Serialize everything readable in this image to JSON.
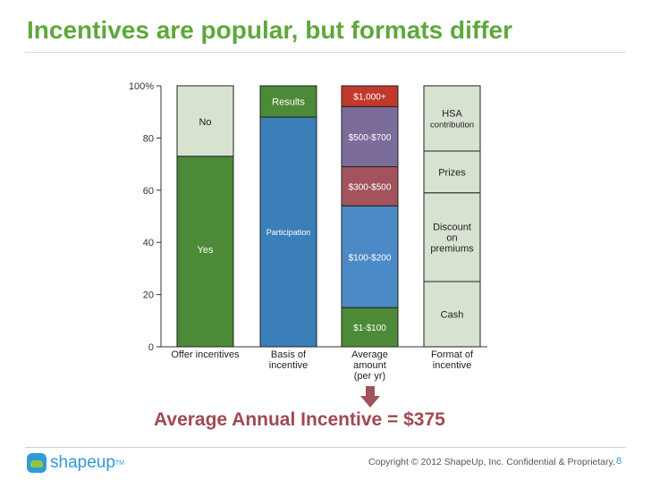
{
  "title": "Incentives are popular, but formats differ",
  "subline": "Average Annual Incentive = $375",
  "footer": {
    "logo_text": "shapeup",
    "logo_tm": "TM",
    "copyright": "Copyright © 2012 ShapeUp, Inc. Confidential & Proprietary.",
    "page_number": "8"
  },
  "colors": {
    "title": "#5ea83b",
    "green": "#4c8a37",
    "light": "#d7e2d1",
    "blue": "#3a7fb8",
    "purple": "#7b6c9a",
    "red": "#a2535c",
    "lightblue": "#4b8ac6",
    "subline": "#a04a52"
  },
  "chart_data": {
    "type": "bar",
    "stacked": true,
    "ylim": [
      0,
      100
    ],
    "yticks": [
      "0",
      "20",
      "40",
      "60",
      "80",
      "100%"
    ],
    "categories": [
      {
        "label": [
          "Offer incentives"
        ],
        "segments": [
          {
            "label": "Yes",
            "value": 73,
            "color": "#4c8a37"
          },
          {
            "label": "No",
            "value": 27,
            "color": "#d7e2d1"
          }
        ]
      },
      {
        "label": [
          "Basis of",
          "incentive"
        ],
        "segments": [
          {
            "label": "Participation",
            "value": 88,
            "color": "#3a7fb8"
          },
          {
            "label": "Results",
            "value": 12,
            "color": "#4c8a37"
          }
        ]
      },
      {
        "label": [
          "Average",
          "amount",
          "(per yr)"
        ],
        "segments": [
          {
            "label": "$1-$100",
            "value": 15,
            "color": "#4c8a37"
          },
          {
            "label": "$100-$200",
            "value": 39,
            "color": "#4b8ac6"
          },
          {
            "label": "$300-$500",
            "value": 15,
            "color": "#a2535c"
          },
          {
            "label": "$500-$700",
            "value": 23,
            "color": "#7b6c9a"
          },
          {
            "label": "$1,000+",
            "value": 8,
            "color": "#c0392b"
          }
        ]
      },
      {
        "label": [
          "Format of",
          "incentive"
        ],
        "segments": [
          {
            "label": "Cash",
            "value": 25,
            "color": "#d7e2d1"
          },
          {
            "label": "Discount on premiums",
            "value": 34,
            "color": "#d7e2d1"
          },
          {
            "label": "Prizes",
            "value": 16,
            "color": "#d7e2d1"
          },
          {
            "label": "HSA contribution",
            "value": 25,
            "color": "#d7e2d1"
          }
        ]
      }
    ]
  }
}
